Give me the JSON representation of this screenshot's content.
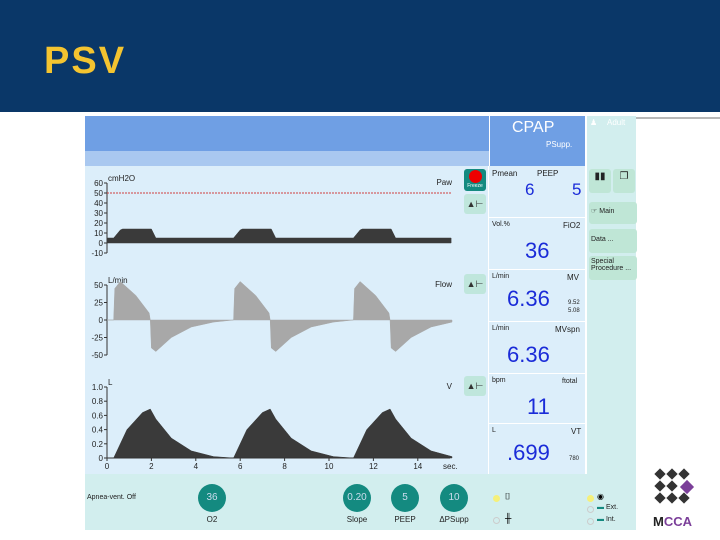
{
  "slide": {
    "title": "PSV"
  },
  "header": {
    "mode": "CPAP",
    "submode": "PSupp.",
    "patient": "Adult"
  },
  "icons": {
    "freeze": "Freeze"
  },
  "values": [
    {
      "unit": "Pmean",
      "label": "PEEP",
      "value_a": "6",
      "value_b": "5"
    },
    {
      "unit": "Vol.%",
      "label": "FiO2",
      "value": "36"
    },
    {
      "unit": "L/min",
      "label": "MV",
      "value": "6.36",
      "hi": "9.52",
      "lo": "5.08"
    },
    {
      "unit": "L/min",
      "label": "MVspn",
      "value": "6.36"
    },
    {
      "unit": "bpm",
      "label": "ftotal",
      "value": "11"
    },
    {
      "unit": "L",
      "label": "VT",
      "value": ".699",
      "limit": "780"
    }
  ],
  "right_menu": {
    "main": "Main",
    "data": "Data ...",
    "special": "Special Procedure ..."
  },
  "bottom": {
    "apnea": "Apnea-vent. Off",
    "knobs": [
      {
        "value": "36",
        "label": "O2"
      },
      {
        "value": "0.20",
        "label": "Slope"
      },
      {
        "value": "5",
        "label": "PEEP"
      },
      {
        "value": "10",
        "label": "ΔPSupp"
      }
    ],
    "ext": "Ext.",
    "int": "Int."
  },
  "logo": {
    "text": "MCCA"
  },
  "chart_data": [
    {
      "type": "area",
      "name": "Paw",
      "unit": "cmH2O",
      "ylim": [
        -10,
        60
      ],
      "yticks": [
        60,
        50,
        40,
        30,
        20,
        10,
        0,
        -10
      ],
      "alarm_line": 50,
      "breath_starts_s": [
        0.3,
        5.7,
        11.1
      ],
      "breath_shape": [
        [
          0,
          5
        ],
        [
          0.3,
          13
        ],
        [
          0.4,
          14
        ],
        [
          1.7,
          14
        ],
        [
          1.9,
          5
        ]
      ],
      "baseline": 5
    },
    {
      "type": "area",
      "name": "Flow",
      "unit": "L/min",
      "ylim": [
        -50,
        50
      ],
      "yticks": [
        50,
        25,
        0,
        -25,
        -50
      ],
      "breath_starts_s": [
        0.3,
        5.7,
        11.1
      ],
      "breath_shape": [
        [
          0,
          0
        ],
        [
          0.05,
          45
        ],
        [
          0.3,
          55
        ],
        [
          1.0,
          35
        ],
        [
          1.6,
          10
        ],
        [
          1.65,
          0
        ],
        [
          1.7,
          -40
        ],
        [
          1.9,
          -45
        ],
        [
          2.6,
          -25
        ],
        [
          3.5,
          -10
        ],
        [
          4.5,
          -3
        ],
        [
          5.4,
          0
        ]
      ]
    },
    {
      "type": "area",
      "name": "V",
      "unit": "L",
      "ylim": [
        0,
        1.0
      ],
      "yticks": [
        1.0,
        0.8,
        0.6,
        0.4,
        0.2,
        0
      ],
      "breath_starts_s": [
        0.3,
        5.7,
        11.1
      ],
      "breath_shape": [
        [
          0,
          0
        ],
        [
          0.6,
          0.4
        ],
        [
          1.3,
          0.64
        ],
        [
          1.65,
          0.69
        ],
        [
          1.9,
          0.55
        ],
        [
          2.6,
          0.28
        ],
        [
          3.5,
          0.1
        ],
        [
          4.5,
          0.02
        ],
        [
          5.4,
          0
        ]
      ]
    },
    {
      "xlabel": "sec.",
      "xlim": [
        0,
        15
      ],
      "xticks": [
        0,
        2,
        4,
        6,
        8,
        10,
        12,
        14
      ]
    }
  ]
}
